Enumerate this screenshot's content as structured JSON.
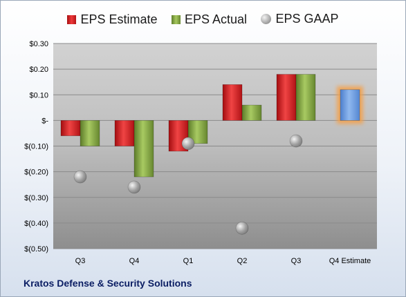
{
  "chart_data": {
    "type": "bar",
    "title": "Kratos Defense & Security Solutions",
    "categories": [
      "Q3",
      "Q4",
      "Q1",
      "Q2",
      "Q3",
      "Q4 Estimate"
    ],
    "series": [
      {
        "name": "EPS Estimate",
        "kind": "bar",
        "color": "#d42326",
        "values": [
          -0.06,
          -0.1,
          -0.12,
          0.14,
          0.18,
          null
        ]
      },
      {
        "name": "EPS Actual",
        "kind": "bar",
        "color": "#8db44a",
        "values": [
          -0.1,
          -0.22,
          -0.09,
          0.06,
          0.18,
          null
        ]
      },
      {
        "name": "EPS GAAP",
        "kind": "marker",
        "color": "#a6a6a6",
        "values": [
          -0.22,
          -0.26,
          -0.09,
          -0.42,
          -0.08,
          null
        ]
      },
      {
        "name": "Q4 Estimate",
        "kind": "bar",
        "color": "#6f9fe0",
        "highlight": "#f5a04a",
        "values": [
          null,
          null,
          null,
          null,
          null,
          0.12
        ]
      }
    ],
    "y_ticks": [
      "$0.30",
      "$0.20",
      "$0.10",
      "$-",
      "$(0.10)",
      "$(0.20)",
      "$(0.30)",
      "$(0.40)",
      "$(0.50)"
    ],
    "y_tick_values": [
      0.3,
      0.2,
      0.1,
      0.0,
      -0.1,
      -0.2,
      -0.3,
      -0.4,
      -0.5
    ],
    "ylim": [
      -0.5,
      0.3
    ],
    "grid": true,
    "legend_position": "top"
  }
}
